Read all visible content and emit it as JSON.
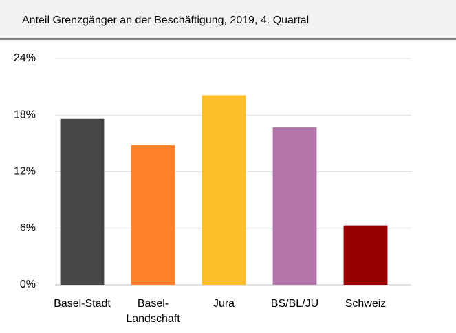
{
  "chart_data": {
    "type": "bar",
    "title": "Anteil Grenzgänger an der Beschäftigung, 2019, 4. Quartal",
    "categories": [
      "Basel-Stadt",
      "Basel-\nLandschaft",
      "Jura",
      "BS/BL/JU",
      "Schweiz"
    ],
    "values": [
      17.6,
      14.8,
      20.1,
      16.7,
      6.3
    ],
    "colors": [
      "#464646",
      "#ff8029",
      "#fbbd2a",
      "#b475ab",
      "#990000"
    ],
    "ylim": [
      0,
      24
    ],
    "yticks": [
      {
        "value": 0,
        "label": "0%"
      },
      {
        "value": 6,
        "label": "6%"
      },
      {
        "value": 12,
        "label": "12%"
      },
      {
        "value": 18,
        "label": "18%"
      },
      {
        "value": 24,
        "label": "24%"
      }
    ],
    "grid": true
  }
}
